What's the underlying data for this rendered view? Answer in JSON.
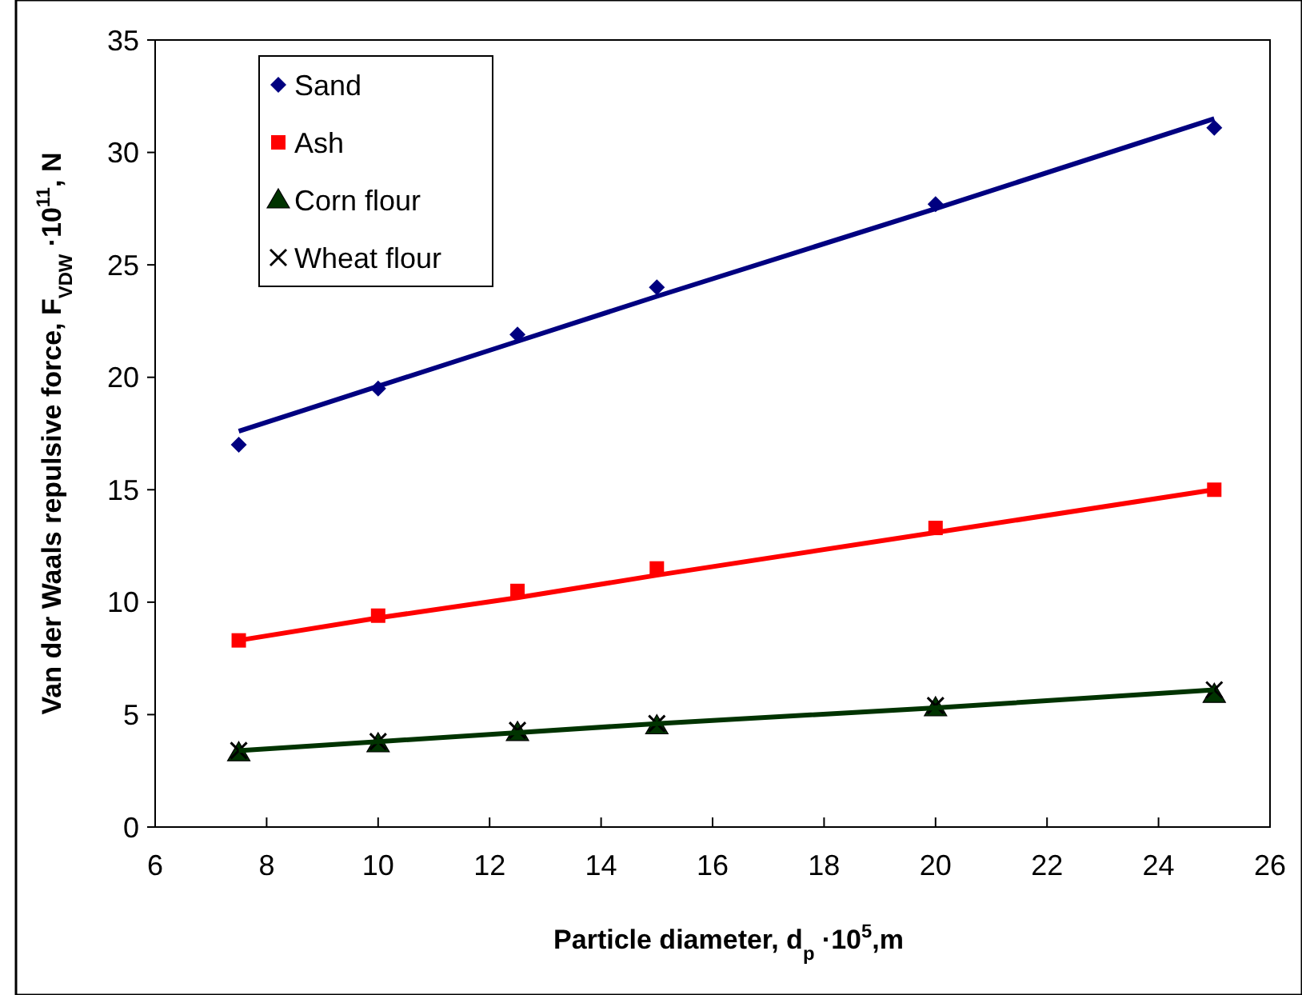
{
  "chart_data": {
    "type": "scatter",
    "xlabel": "Particle diameter, d$_{p}$ ·10$^{5}$,m",
    "ylabel": "Van der Waals repulsive  force, F$_{VDW}$ ·10$^{11}$, N",
    "x": [
      7.5,
      10,
      12.5,
      15,
      20,
      25
    ],
    "xlim": [
      6,
      26
    ],
    "xticks": [
      6,
      8,
      10,
      12,
      14,
      16,
      18,
      20,
      22,
      24,
      26
    ],
    "ylim": [
      0,
      35
    ],
    "yticks": [
      0,
      5,
      10,
      15,
      20,
      25,
      30,
      35
    ],
    "grid": false,
    "legend": "top left",
    "series": [
      {
        "name": "Sand",
        "color": "#000080",
        "marker": "diamond",
        "values": [
          17.0,
          19.5,
          21.9,
          24.0,
          27.7,
          31.1
        ]
      },
      {
        "name": "Ash",
        "color": "#ff0000",
        "marker": "square",
        "values": [
          8.3,
          9.4,
          10.5,
          11.5,
          13.3,
          15.0
        ]
      },
      {
        "name": "Corn flour",
        "color": "#003300",
        "marker": "triangle",
        "values": [
          3.3,
          3.7,
          4.2,
          4.5,
          5.3,
          5.9
        ]
      },
      {
        "name": "Wheat flour",
        "color": "#000000",
        "marker": "cross",
        "values": [
          3.4,
          3.8,
          4.3,
          4.6,
          5.4,
          6.1
        ]
      },
      {
        "type": "line",
        "color": "#000080",
        "marker": "none",
        "values": [
          17.6,
          19.6,
          21.6,
          23.6,
          27.5,
          31.5
        ]
      },
      {
        "type": "line",
        "color": "#ff0000",
        "marker": "none",
        "values": [
          8.3,
          9.3,
          10.2,
          11.2,
          13.1,
          15.0
        ]
      },
      {
        "type": "line",
        "color": "#003300",
        "marker": "none",
        "values": [
          3.4,
          3.8,
          4.2,
          4.6,
          5.3,
          6.1
        ]
      }
    ]
  }
}
